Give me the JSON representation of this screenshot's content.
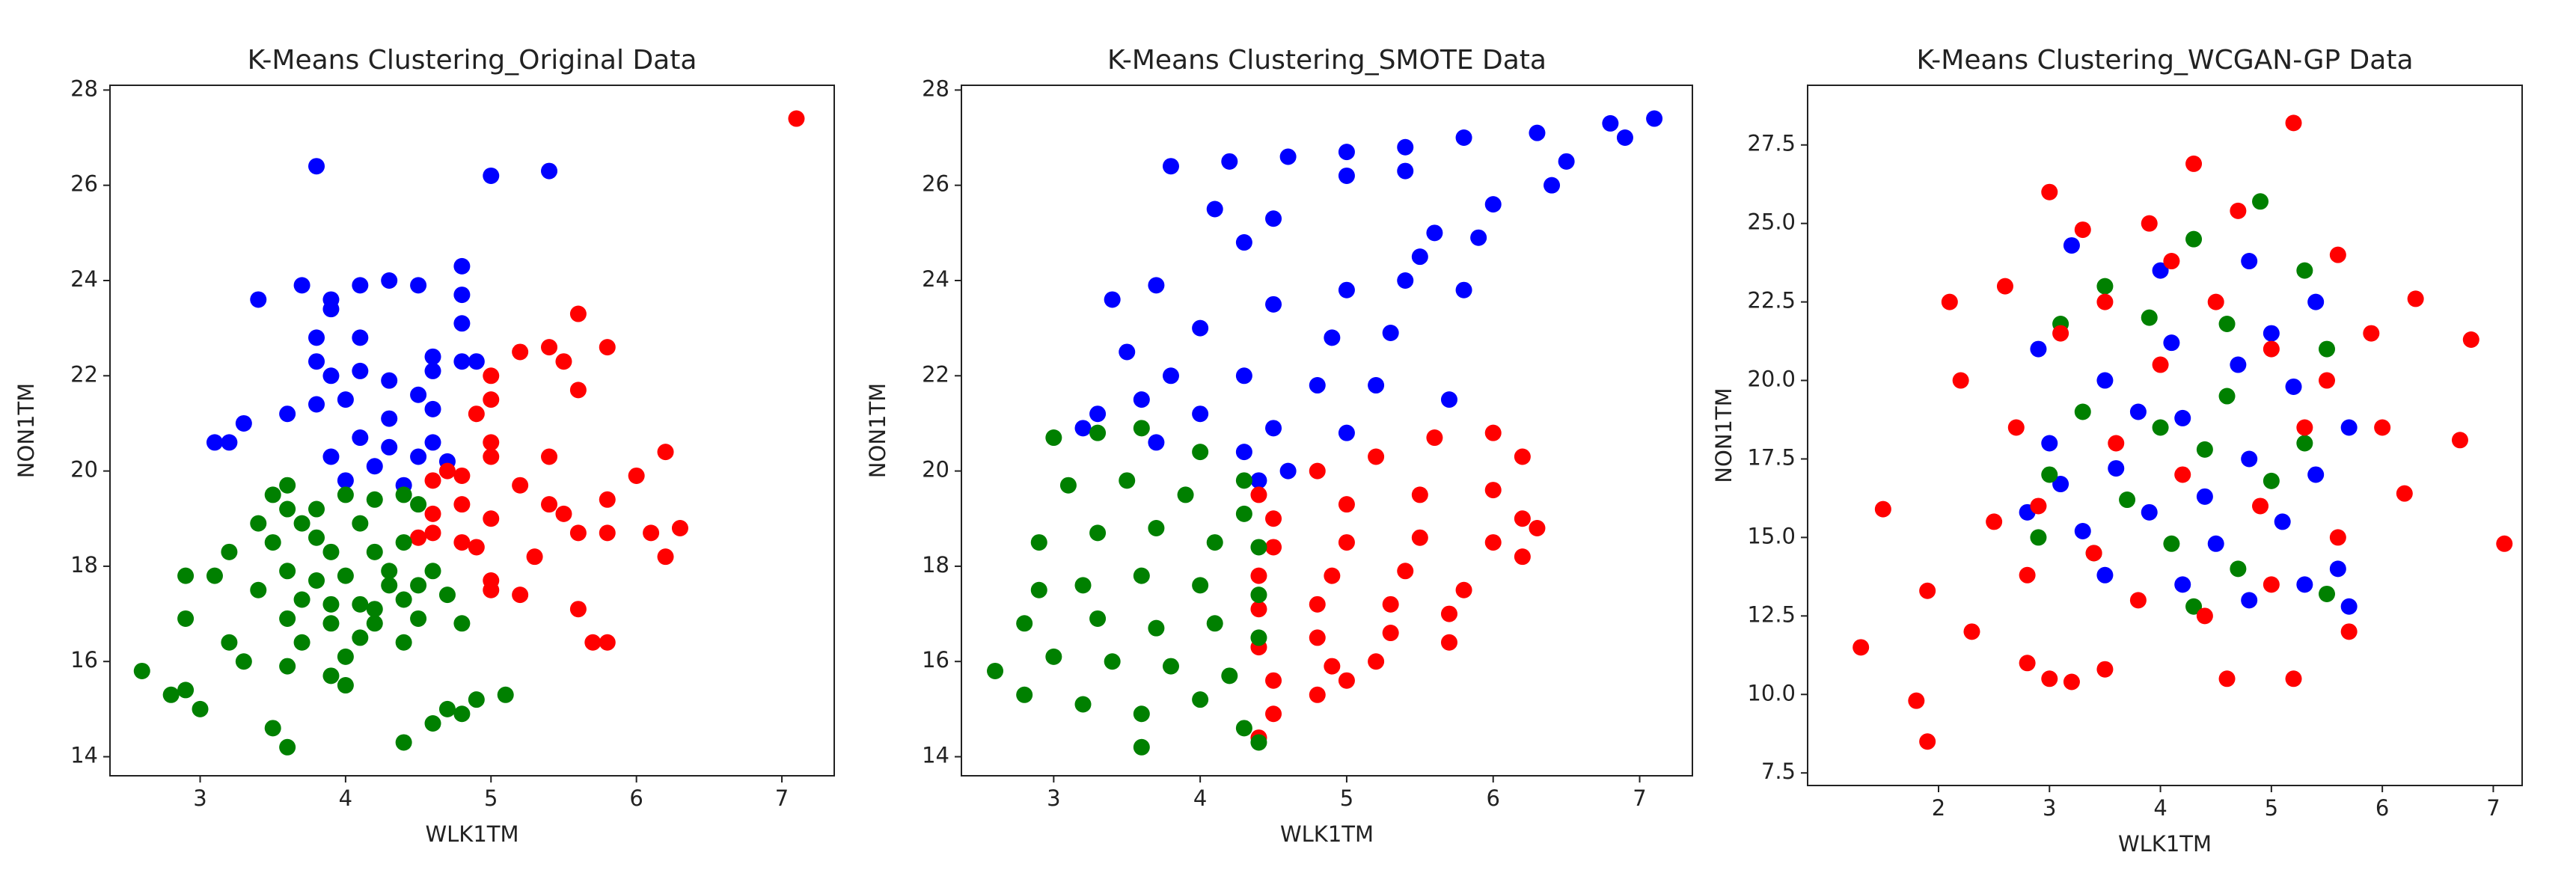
{
  "chart_data": [
    {
      "type": "scatter",
      "title": "K-Means Clustering_Original Data",
      "x_label": "WLK1TM",
      "y_label": "NON1TM",
      "xlim": [
        2.38,
        7.36
      ],
      "ylim": [
        13.6,
        28.1
      ],
      "xticks": [
        3,
        4,
        5,
        6,
        7
      ],
      "yticks": [
        14,
        16,
        18,
        20,
        22,
        24,
        26,
        28
      ],
      "series": [
        {
          "color": "#0000ff",
          "x": [
            3.8,
            5.0,
            5.4,
            4.8,
            3.4,
            3.7,
            3.9,
            4.1,
            4.3,
            4.5,
            4.8,
            3.9,
            4.8,
            3.8,
            4.1,
            3.8,
            3.9,
            4.1,
            4.3,
            4.6,
            4.8,
            4.9,
            4.6,
            3.3,
            3.6,
            3.8,
            4.0,
            4.3,
            4.5,
            4.6,
            3.1,
            3.2,
            3.9,
            4.1,
            4.2,
            4.3,
            4.5,
            4.6,
            4.7,
            4.0,
            4.4
          ],
          "values": [
            26.4,
            26.2,
            26.3,
            24.3,
            23.6,
            23.9,
            23.6,
            23.9,
            24.0,
            23.9,
            23.7,
            23.4,
            23.1,
            22.8,
            22.8,
            22.3,
            22.0,
            22.1,
            21.9,
            22.4,
            22.3,
            22.3,
            22.1,
            21.0,
            21.2,
            21.4,
            21.5,
            21.1,
            21.6,
            21.3,
            20.6,
            20.6,
            20.3,
            20.7,
            20.1,
            20.5,
            20.3,
            20.6,
            20.2,
            19.8,
            19.7
          ]
        },
        {
          "color": "#ff0000",
          "x": [
            7.1,
            5.6,
            5.4,
            5.2,
            5.0,
            5.5,
            5.8,
            5.6,
            5.0,
            4.9,
            5.0,
            5.0,
            4.7,
            4.6,
            4.8,
            5.4,
            5.2,
            6.2,
            6.0,
            5.8,
            5.4,
            5.5,
            4.6,
            5.0,
            4.5,
            4.6,
            4.8,
            4.9,
            5.6,
            5.8,
            6.3,
            6.1,
            6.2,
            5.3,
            5.0,
            5.0,
            5.2,
            5.6,
            5.7,
            5.8,
            4.8
          ],
          "values": [
            27.4,
            23.3,
            22.6,
            22.5,
            22.0,
            22.3,
            22.6,
            21.7,
            21.5,
            21.2,
            20.6,
            20.3,
            20.0,
            19.8,
            19.9,
            20.3,
            19.7,
            20.4,
            19.9,
            19.4,
            19.3,
            19.1,
            19.1,
            19.0,
            18.6,
            18.7,
            18.5,
            18.4,
            18.7,
            18.7,
            18.8,
            18.7,
            18.2,
            18.2,
            17.7,
            17.5,
            17.4,
            17.1,
            16.4,
            16.4,
            19.3
          ]
        },
        {
          "color": "#008000",
          "x": [
            3.6,
            3.5,
            3.6,
            3.8,
            4.0,
            4.2,
            4.4,
            4.5,
            3.4,
            3.7,
            3.8,
            4.1,
            3.2,
            3.5,
            3.9,
            4.2,
            4.4,
            2.9,
            3.1,
            3.6,
            3.8,
            4.0,
            4.3,
            4.6,
            4.3,
            4.5,
            3.4,
            3.7,
            3.9,
            4.1,
            4.2,
            4.4,
            4.7,
            2.9,
            3.6,
            3.9,
            4.2,
            4.5,
            4.8,
            3.2,
            3.7,
            4.1,
            4.4,
            3.3,
            3.6,
            4.0,
            3.9,
            4.0,
            2.6,
            2.8,
            2.9,
            3.0,
            3.5,
            3.6,
            4.4,
            4.6,
            4.8,
            4.9,
            5.1,
            4.7
          ],
          "values": [
            19.7,
            19.5,
            19.2,
            19.2,
            19.5,
            19.4,
            19.5,
            19.3,
            18.9,
            18.9,
            18.6,
            18.9,
            18.3,
            18.5,
            18.3,
            18.3,
            18.5,
            17.8,
            17.8,
            17.9,
            17.7,
            17.8,
            17.9,
            17.9,
            17.6,
            17.6,
            17.5,
            17.3,
            17.2,
            17.2,
            17.1,
            17.3,
            17.4,
            16.9,
            16.9,
            16.8,
            16.8,
            16.9,
            16.8,
            16.4,
            16.4,
            16.5,
            16.4,
            16.0,
            15.9,
            16.1,
            15.7,
            15.5,
            15.8,
            15.3,
            15.4,
            15.0,
            14.6,
            14.2,
            14.3,
            14.7,
            14.9,
            15.2,
            15.3,
            15.0
          ]
        }
      ]
    },
    {
      "type": "scatter",
      "title": "K-Means Clustering_SMOTE Data",
      "x_label": "WLK1TM",
      "y_label": "NON1TM",
      "xlim": [
        2.37,
        7.36
      ],
      "ylim": [
        13.6,
        28.1
      ],
      "xticks": [
        3,
        4,
        5,
        6,
        7
      ],
      "yticks": [
        14,
        16,
        18,
        20,
        22,
        24,
        26,
        28
      ],
      "series": [
        {
          "color": "#0000ff",
          "x": [
            3.8,
            4.2,
            4.6,
            5.0,
            5.4,
            5.8,
            6.3,
            6.8,
            7.1,
            6.5,
            6.0,
            5.5,
            5.0,
            6.9,
            6.4,
            5.9,
            5.4,
            4.1,
            4.3,
            4.5,
            5.0,
            5.4,
            5.6,
            5.8,
            3.4,
            3.7,
            4.0,
            4.5,
            4.9,
            5.3,
            3.5,
            3.8,
            4.3,
            4.8,
            5.2,
            5.7,
            3.3,
            3.6,
            4.0,
            4.5,
            5.0,
            3.2,
            3.7,
            4.3,
            4.6,
            4.4
          ],
          "values": [
            26.4,
            26.5,
            26.6,
            26.7,
            26.8,
            27.0,
            27.1,
            27.3,
            27.4,
            26.5,
            25.6,
            24.5,
            23.8,
            27.0,
            26.0,
            24.9,
            24.0,
            25.5,
            24.8,
            25.3,
            26.2,
            26.3,
            25.0,
            23.8,
            23.6,
            23.9,
            23.0,
            23.5,
            22.8,
            22.9,
            22.5,
            22.0,
            22.0,
            21.8,
            21.8,
            21.5,
            21.2,
            21.5,
            21.2,
            20.9,
            20.8,
            20.9,
            20.6,
            20.4,
            20.0,
            19.8
          ]
        },
        {
          "color": "#ff0000",
          "x": [
            4.4,
            4.8,
            5.2,
            5.6,
            6.0,
            6.2,
            4.5,
            5.0,
            5.5,
            6.0,
            6.2,
            6.3,
            4.5,
            5.0,
            5.5,
            6.0,
            6.2,
            4.4,
            4.9,
            5.4,
            5.8,
            4.4,
            4.8,
            5.3,
            5.7,
            4.4,
            4.8,
            5.3,
            5.7,
            4.5,
            4.9,
            5.2,
            4.5,
            4.8,
            4.4,
            5.0
          ],
          "values": [
            19.5,
            20.0,
            20.3,
            20.7,
            20.8,
            20.3,
            19.0,
            19.3,
            19.5,
            19.6,
            19.0,
            18.8,
            18.4,
            18.5,
            18.6,
            18.5,
            18.2,
            17.8,
            17.8,
            17.9,
            17.5,
            17.1,
            17.2,
            17.2,
            17.0,
            16.3,
            16.5,
            16.6,
            16.4,
            15.6,
            15.9,
            16.0,
            14.9,
            15.3,
            14.4,
            15.6
          ]
        },
        {
          "color": "#008000",
          "x": [
            3.0,
            3.3,
            3.6,
            4.0,
            4.3,
            3.1,
            3.5,
            3.9,
            4.3,
            2.9,
            3.3,
            3.7,
            4.1,
            4.4,
            2.9,
            3.2,
            3.6,
            4.0,
            4.4,
            2.8,
            3.3,
            3.7,
            4.1,
            4.4,
            2.6,
            3.0,
            3.4,
            3.8,
            4.2,
            2.8,
            3.2,
            3.6,
            3.6,
            4.0,
            4.3,
            4.4
          ],
          "values": [
            20.7,
            20.8,
            20.9,
            20.4,
            19.8,
            19.7,
            19.8,
            19.5,
            19.1,
            18.5,
            18.7,
            18.8,
            18.5,
            18.4,
            17.5,
            17.6,
            17.8,
            17.6,
            17.4,
            16.8,
            16.9,
            16.7,
            16.8,
            16.5,
            15.8,
            16.1,
            16.0,
            15.9,
            15.7,
            15.3,
            15.1,
            14.9,
            14.2,
            15.2,
            14.6,
            14.3
          ]
        }
      ]
    },
    {
      "type": "scatter",
      "title": "K-Means Clustering_WCGAN-GP Data",
      "x_label": "WLK1TM",
      "y_label": "NON1TM",
      "xlim": [
        0.82,
        7.26
      ],
      "ylim": [
        7.1,
        29.4
      ],
      "xticks": [
        2,
        3,
        4,
        5,
        6,
        7
      ],
      "yticks": [
        7.5,
        {
          "value": 10,
          "label": "10.0"
        },
        12.5,
        {
          "value": 15,
          "label": "15.0"
        },
        17.5,
        {
          "value": 20,
          "label": "20.0"
        },
        22.5,
        {
          "value": 25,
          "label": "25.0"
        },
        27.5
      ],
      "series": [
        {
          "color": "#0000ff",
          "x": [
            3.2,
            4.0,
            4.8,
            5.4,
            2.9,
            3.5,
            4.1,
            4.7,
            5.2,
            5.7,
            3.0,
            3.6,
            4.2,
            4.8,
            5.4,
            2.8,
            3.3,
            3.9,
            4.5,
            5.1,
            5.6,
            3.5,
            4.2,
            4.8,
            5.3,
            5.7,
            3.8,
            4.4,
            5.0,
            3.1
          ],
          "values": [
            24.3,
            23.5,
            23.8,
            22.5,
            21.0,
            20.0,
            21.2,
            20.5,
            19.8,
            18.5,
            18.0,
            17.2,
            18.8,
            17.5,
            17.0,
            15.8,
            15.2,
            15.8,
            14.8,
            15.5,
            14.0,
            13.8,
            13.5,
            13.0,
            13.5,
            12.8,
            19.0,
            16.3,
            21.5,
            16.7
          ]
        },
        {
          "color": "#008000",
          "x": [
            3.5,
            4.3,
            4.9,
            5.3,
            3.1,
            3.9,
            4.6,
            5.5,
            3.3,
            4.0,
            4.6,
            5.3,
            3.0,
            3.7,
            4.4,
            5.0,
            3.4,
            4.1,
            4.7,
            5.5,
            4.3,
            2.9
          ],
          "values": [
            23.0,
            24.5,
            25.7,
            23.5,
            21.8,
            22.0,
            21.8,
            21.0,
            19.0,
            18.5,
            19.5,
            18.0,
            17.0,
            16.2,
            17.8,
            16.8,
            14.5,
            14.8,
            14.0,
            13.2,
            12.8,
            15.0
          ]
        },
        {
          "color": "#ff0000",
          "x": [
            1.3,
            1.5,
            1.8,
            1.9,
            1.9,
            2.1,
            2.2,
            2.3,
            2.5,
            2.6,
            2.8,
            3.0,
            3.0,
            3.2,
            3.5,
            3.3,
            4.3,
            5.2,
            4.6,
            5.2,
            5.7,
            6.3,
            6.8,
            6.7,
            7.1,
            6.2,
            5.6,
            3.9,
            4.7,
            2.7,
            3.1,
            3.5,
            4.0,
            4.5,
            5.0,
            5.5,
            6.0,
            2.9,
            3.4,
            3.8,
            4.4,
            5.0,
            5.6,
            3.6,
            4.2,
            4.9,
            5.3,
            2.8,
            5.9,
            4.1
          ],
          "values": [
            11.5,
            15.9,
            9.8,
            8.5,
            13.3,
            22.5,
            20.0,
            12.0,
            15.5,
            23.0,
            11.0,
            26.0,
            10.5,
            10.4,
            10.8,
            24.8,
            26.9,
            28.2,
            10.5,
            10.5,
            12.0,
            22.6,
            21.3,
            18.1,
            14.8,
            16.4,
            24.0,
            25.0,
            25.4,
            18.5,
            21.5,
            22.5,
            20.5,
            22.5,
            21.0,
            20.0,
            18.5,
            16.0,
            14.5,
            13.0,
            12.5,
            13.5,
            15.0,
            18.0,
            17.0,
            16.0,
            18.5,
            13.8,
            21.5,
            23.8
          ]
        }
      ]
    }
  ]
}
